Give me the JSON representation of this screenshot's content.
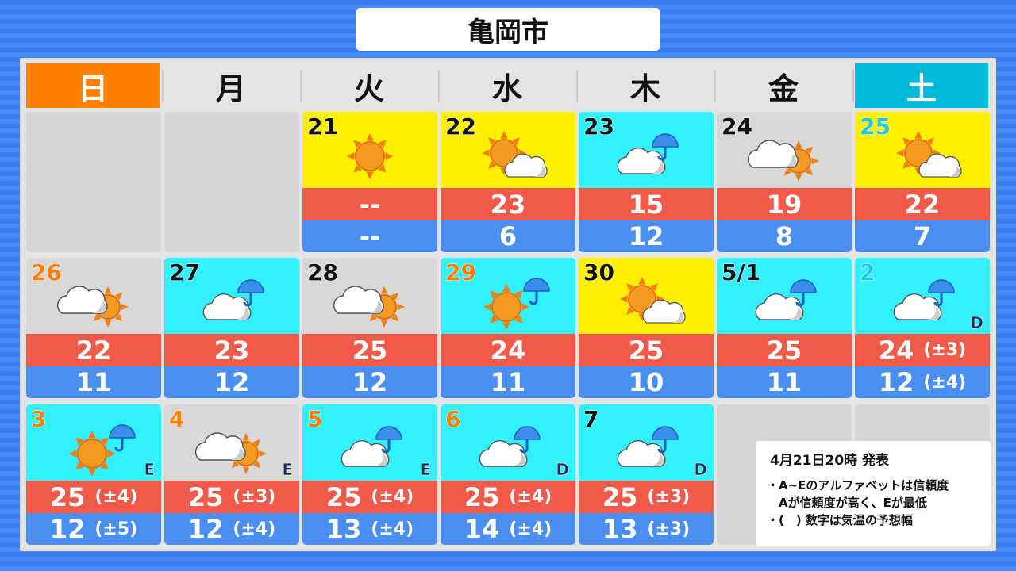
{
  "title": "亀岡市",
  "weekdays": [
    {
      "label": "日",
      "bg": "#ff8000",
      "color": "#ffffff"
    },
    {
      "label": "月"
    },
    {
      "label": "火"
    },
    {
      "label": "水"
    },
    {
      "label": "木"
    },
    {
      "label": "金"
    },
    {
      "label": "土",
      "bg": "#00b8d8",
      "color": "#ffffff"
    }
  ],
  "colors": {
    "sunny": "#fff000",
    "rain": "#33f0ff",
    "cloudy": "#d8d8d8",
    "high": "#f05a4a",
    "low": "#4a8ff0",
    "holiday": "#ff8000",
    "saturday": "#20c8e0"
  },
  "cells": [
    {
      "empty": true
    },
    {
      "empty": true
    },
    {
      "date": "21",
      "icon": "sun",
      "bg": "sunny",
      "hi": "--",
      "lo": "--"
    },
    {
      "date": "22",
      "icon": "sun-cloud",
      "bg": "sunny",
      "hi": "23",
      "lo": "6"
    },
    {
      "date": "23",
      "icon": "cloud-rain",
      "bg": "rain",
      "hi": "15",
      "lo": "12"
    },
    {
      "date": "24",
      "icon": "cloud-sun",
      "bg": "cloudy",
      "hi": "19",
      "lo": "8"
    },
    {
      "date": "25",
      "icon": "sun-cloud",
      "bg": "sunny",
      "hi": "22",
      "lo": "7",
      "dcol": "saturday"
    },
    {
      "date": "26",
      "icon": "cloud-sun",
      "bg": "cloudy",
      "hi": "22",
      "lo": "11",
      "dcol": "holiday"
    },
    {
      "date": "27",
      "icon": "cloud-rain",
      "bg": "rain",
      "hi": "23",
      "lo": "12"
    },
    {
      "date": "28",
      "icon": "cloud-sun",
      "bg": "cloudy",
      "hi": "25",
      "lo": "12"
    },
    {
      "date": "29",
      "icon": "sun-rain",
      "bg": "rain",
      "hi": "24",
      "lo": "11",
      "dcol": "holiday"
    },
    {
      "date": "30",
      "icon": "sun-cloud",
      "bg": "sunny",
      "hi": "25",
      "lo": "10"
    },
    {
      "date": "5/1",
      "icon": "cloud-rain",
      "bg": "rain",
      "hi": "25",
      "lo": "11"
    },
    {
      "date": "2",
      "icon": "cloud-rain",
      "bg": "rain",
      "hi": "24",
      "hi_range": "(±3)",
      "lo": "12",
      "lo_range": "(±4)",
      "conf": "D",
      "dcol": "saturday"
    },
    {
      "date": "3",
      "icon": "sun-rain",
      "bg": "rain",
      "hi": "25",
      "hi_range": "(±4)",
      "lo": "12",
      "lo_range": "(±5)",
      "conf": "E",
      "dcol": "holiday"
    },
    {
      "date": "4",
      "icon": "cloud-sun",
      "bg": "cloudy",
      "hi": "25",
      "hi_range": "(±3)",
      "lo": "12",
      "lo_range": "(±4)",
      "conf": "E",
      "dcol": "holiday"
    },
    {
      "date": "5",
      "icon": "cloud-rain",
      "bg": "rain",
      "hi": "25",
      "hi_range": "(±4)",
      "lo": "13",
      "lo_range": "(±4)",
      "conf": "E",
      "dcol": "holiday"
    },
    {
      "date": "6",
      "icon": "cloud-rain",
      "bg": "rain",
      "hi": "25",
      "hi_range": "(±4)",
      "lo": "14",
      "lo_range": "(±4)",
      "conf": "D",
      "dcol": "holiday"
    },
    {
      "date": "7",
      "icon": "cloud-rain",
      "bg": "rain",
      "hi": "25",
      "hi_range": "(±3)",
      "lo": "13",
      "lo_range": "(±3)",
      "conf": "D"
    }
  ],
  "notes": {
    "issued": "4月21日20時 発表",
    "lines": [
      "・A~Eのアルファベットは信頼度",
      "　Aが信頼度が高く、Eが最低",
      "・(　) 数字は気温の予想幅"
    ]
  }
}
